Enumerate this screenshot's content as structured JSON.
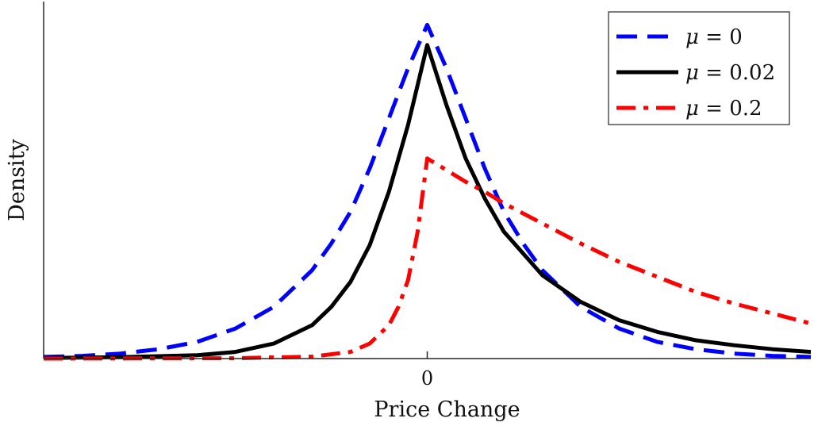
{
  "chart_data": {
    "type": "line",
    "xlabel": "Price Change",
    "ylabel": "Density",
    "x_ticks": [
      {
        "value": 0,
        "label": "0"
      }
    ],
    "xlim": [
      -1.0,
      1.0
    ],
    "ylim": [
      0,
      1.07
    ],
    "legend_position": "top-right",
    "grid": false,
    "series": [
      {
        "name": "μ = 0",
        "name_parts": {
          "symbol": "μ",
          "rest": " = 0"
        },
        "color": "#0000ff",
        "style": "dashed",
        "x": [
          -1.0,
          -0.9,
          -0.8,
          -0.7,
          -0.6,
          -0.5,
          -0.4,
          -0.3,
          -0.25,
          -0.2,
          -0.15,
          -0.1,
          -0.05,
          0.0,
          0.05,
          0.1,
          0.15,
          0.2,
          0.25,
          0.3,
          0.4,
          0.5,
          0.6,
          0.7,
          0.8,
          0.9,
          1.0
        ],
        "y": [
          0.005,
          0.008,
          0.015,
          0.028,
          0.05,
          0.09,
          0.155,
          0.265,
          0.345,
          0.44,
          0.57,
          0.72,
          0.87,
          1.0,
          0.87,
          0.72,
          0.57,
          0.44,
          0.345,
          0.265,
          0.155,
          0.09,
          0.05,
          0.028,
          0.015,
          0.008,
          0.005
        ]
      },
      {
        "name": "μ = 0.02",
        "name_parts": {
          "symbol": "μ",
          "rest": " = 0.02"
        },
        "color": "#000000",
        "style": "solid",
        "x": [
          -1.0,
          -0.8,
          -0.6,
          -0.5,
          -0.4,
          -0.3,
          -0.25,
          -0.2,
          -0.15,
          -0.1,
          -0.05,
          0.0,
          0.05,
          0.1,
          0.15,
          0.2,
          0.3,
          0.4,
          0.5,
          0.6,
          0.7,
          0.8,
          0.9,
          1.0
        ],
        "y": [
          0.002,
          0.004,
          0.01,
          0.02,
          0.045,
          0.1,
          0.155,
          0.23,
          0.34,
          0.5,
          0.7,
          0.94,
          0.76,
          0.6,
          0.48,
          0.38,
          0.25,
          0.17,
          0.115,
          0.08,
          0.055,
          0.04,
          0.028,
          0.02
        ]
      },
      {
        "name": "μ = 0.2",
        "name_parts": {
          "symbol": "μ",
          "rest": " = 0.2"
        },
        "color": "#ff0000",
        "style": "dashdot",
        "x": [
          -1.0,
          -0.5,
          -0.3,
          -0.2,
          -0.15,
          -0.1,
          -0.075,
          -0.05,
          -0.025,
          0.0,
          0.05,
          0.1,
          0.15,
          0.2,
          0.3,
          0.4,
          0.5,
          0.6,
          0.7,
          0.8,
          0.9,
          1.0
        ],
        "y": [
          0.0,
          0.001,
          0.006,
          0.02,
          0.045,
          0.1,
          0.155,
          0.235,
          0.38,
          0.6,
          0.565,
          0.53,
          0.5,
          0.465,
          0.405,
          0.345,
          0.29,
          0.245,
          0.2,
          0.165,
          0.135,
          0.105
        ]
      }
    ]
  }
}
